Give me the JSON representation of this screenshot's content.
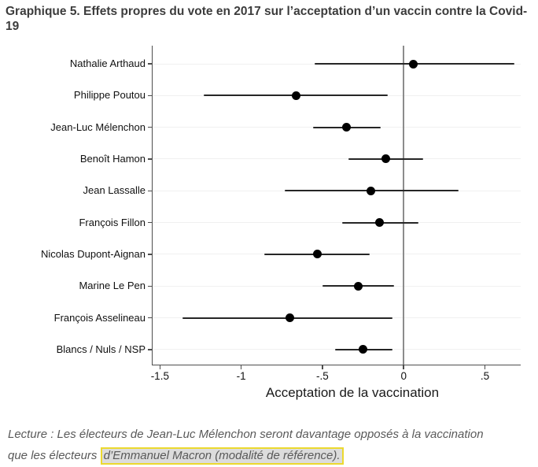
{
  "header": {
    "title_line1": "Graphique 5. Effets propres du vote en 2017 sur l’acceptation d’un vaccin contre la Covid-",
    "title_line2": "19"
  },
  "caption": {
    "line1": "Lecture : Les électeurs de Jean-Luc Mélenchon seront davantage opposés à la vaccination",
    "line2_prefix": "que les électeurs ",
    "highlight": "d’Emmanuel Macron (modalité de référence)."
  },
  "colors": {
    "title": "#3c3c3c",
    "caption_text": "#595959",
    "axis": "#4d4d4d",
    "gridline": "#f0f0f0",
    "zero_line": "#8c8c8c",
    "marker": "#000000",
    "ci_line": "#262626",
    "highlight_border": "#ecd92f",
    "highlight_bg": "#dcdcdc",
    "background": "#ffffff"
  },
  "chart_data": {
    "type": "scatter",
    "subtype": "coefficient-plot-with-confidence-intervals",
    "title": "",
    "xlabel": "Acceptation de la vaccination",
    "ylabel": "",
    "xlim": [
      -1.55,
      0.72
    ],
    "grid": true,
    "reference_line_x": 0,
    "x_ticks": [
      {
        "value": -1.5,
        "label": "-1.5"
      },
      {
        "value": -1.0,
        "label": "-1"
      },
      {
        "value": -0.5,
        "label": "-.5"
      },
      {
        "value": 0.0,
        "label": "0"
      },
      {
        "value": 0.5,
        "label": ".5"
      }
    ],
    "points": [
      {
        "candidate": "Nathalie Arthaud",
        "estimate": 0.06,
        "ci_low": -0.55,
        "ci_high": 0.68
      },
      {
        "candidate": "Philippe Poutou",
        "estimate": -0.66,
        "ci_low": -1.23,
        "ci_high": -0.1
      },
      {
        "candidate": "Jean-Luc Mélenchon",
        "estimate": -0.35,
        "ci_low": -0.56,
        "ci_high": -0.14
      },
      {
        "candidate": "Benoît Hamon",
        "estimate": -0.11,
        "ci_low": -0.34,
        "ci_high": 0.12
      },
      {
        "candidate": "Jean Lassalle",
        "estimate": -0.2,
        "ci_low": -0.73,
        "ci_high": 0.34
      },
      {
        "candidate": "François Fillon",
        "estimate": -0.15,
        "ci_low": -0.38,
        "ci_high": 0.09
      },
      {
        "candidate": "Nicolas Dupont-Aignan",
        "estimate": -0.53,
        "ci_low": -0.86,
        "ci_high": -0.21
      },
      {
        "candidate": "Marine Le Pen",
        "estimate": -0.28,
        "ci_low": -0.5,
        "ci_high": -0.06
      },
      {
        "candidate": "François Asselineau",
        "estimate": -0.7,
        "ci_low": -1.36,
        "ci_high": -0.07
      },
      {
        "candidate": "Blancs / Nuls / NSP",
        "estimate": -0.25,
        "ci_low": -0.42,
        "ci_high": -0.07
      }
    ]
  }
}
